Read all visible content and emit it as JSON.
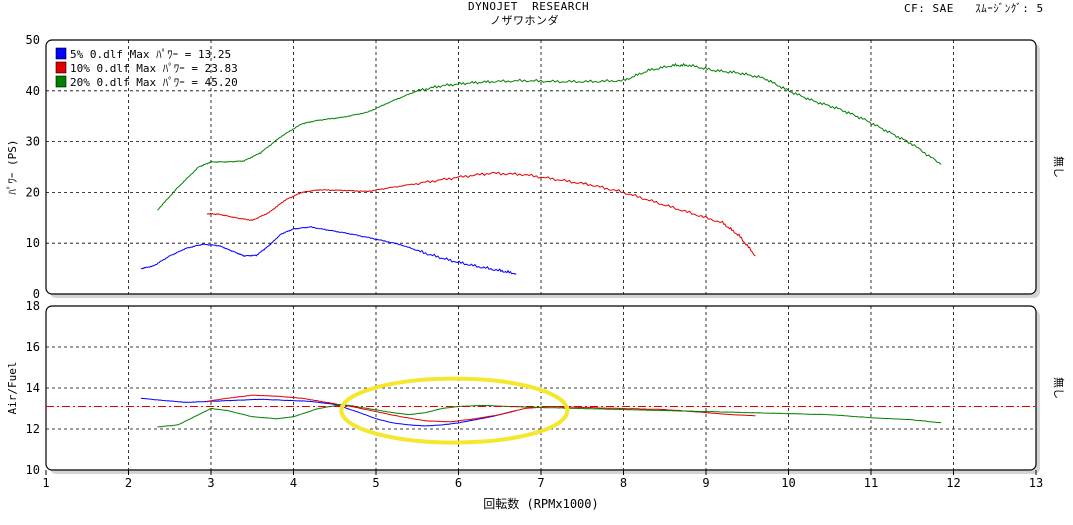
{
  "header": {
    "title": "DYNOJET  RESEARCH",
    "subtitle": "ノザワホンダ",
    "cf_label": "CF: SAE",
    "smoothing_label": "ｽﾑｰｼﾞﾝｸﾞ: 5"
  },
  "colors": {
    "blue": "#0000ff",
    "red": "#e00000",
    "green": "#008000",
    "reference_line": "#e00000",
    "highlight": "#f5e62e",
    "panel_shadow": "#d4d4d4"
  },
  "chart_data": [
    {
      "type": "line",
      "ylabel": "ﾊﾟﾜｰ (PS)",
      "right_label": "無し",
      "ylim": [
        0,
        50
      ],
      "xlim": [
        1,
        13
      ],
      "yticks": [
        0,
        10,
        20,
        30,
        40,
        50
      ],
      "grid": true,
      "legend_position": "top-left",
      "legend": [
        "5% 0.dlf Max ﾊﾟﾜｰ = 13.25",
        "10% 0.dlf Max ﾊﾟﾜｰ = 23.83",
        "20% 0.dlf Max ﾊﾟﾜｰ = 45.20"
      ],
      "series": [
        {
          "name": "5% 0.dlf",
          "color": "blue",
          "x": [
            2.15,
            2.3,
            2.5,
            2.7,
            2.9,
            3.1,
            3.25,
            3.4,
            3.55,
            3.7,
            3.85,
            4.0,
            4.2,
            4.45,
            4.7,
            5.0,
            5.3,
            5.6,
            5.9,
            6.2,
            6.5,
            6.7
          ],
          "y": [
            5.0,
            5.5,
            7.5,
            9.0,
            9.8,
            9.5,
            8.5,
            7.5,
            7.6,
            9.5,
            11.8,
            12.8,
            13.2,
            12.5,
            11.8,
            10.8,
            9.7,
            8.0,
            6.6,
            5.5,
            4.6,
            4.0
          ]
        },
        {
          "name": "10% 0.dlf",
          "color": "red",
          "x": [
            2.95,
            3.1,
            3.3,
            3.5,
            3.7,
            3.9,
            4.1,
            4.3,
            4.6,
            4.9,
            5.2,
            5.6,
            6.0,
            6.4,
            6.8,
            7.2,
            7.6,
            8.0,
            8.4,
            8.8,
            9.2,
            9.4,
            9.6
          ],
          "y": [
            15.8,
            15.7,
            15.0,
            14.5,
            16.0,
            18.5,
            20.0,
            20.5,
            20.4,
            20.2,
            21.0,
            22.0,
            23.0,
            23.8,
            23.5,
            22.5,
            21.5,
            20.0,
            18.0,
            16.0,
            14.0,
            11.5,
            7.5
          ]
        },
        {
          "name": "20% 0.dlf",
          "color": "green",
          "x": [
            2.35,
            2.6,
            2.85,
            3.0,
            3.2,
            3.4,
            3.6,
            3.85,
            4.1,
            4.3,
            4.6,
            4.9,
            5.2,
            5.5,
            5.8,
            6.1,
            6.4,
            6.8,
            7.2,
            7.6,
            8.0,
            8.3,
            8.6,
            8.8,
            9.1,
            9.4,
            9.7,
            10.0,
            10.3,
            10.6,
            10.9,
            11.2,
            11.5,
            11.85
          ],
          "y": [
            16.5,
            21.0,
            25.0,
            26.0,
            26.0,
            26.2,
            27.8,
            31.0,
            33.5,
            34.2,
            34.8,
            35.8,
            38.0,
            40.0,
            41.0,
            41.5,
            41.8,
            42.0,
            41.8,
            41.8,
            42.0,
            44.0,
            45.0,
            45.0,
            44.0,
            43.5,
            42.5,
            40.0,
            38.0,
            36.5,
            34.5,
            32.0,
            29.5,
            25.5
          ]
        }
      ]
    },
    {
      "type": "line",
      "ylabel": "Air/Fuel",
      "right_label": "無し",
      "xlabel": "回転数 (RPMx1000)",
      "ylim": [
        10,
        18
      ],
      "xlim": [
        1,
        13
      ],
      "yticks": [
        10,
        12,
        14,
        16,
        18
      ],
      "xticks": [
        1,
        2,
        3,
        4,
        5,
        6,
        7,
        8,
        9,
        10,
        11,
        12,
        13
      ],
      "grid": true,
      "reference_line": 13.1,
      "highlight_ellipse": {
        "center_x": 5.95,
        "center_y": 12.9,
        "radius_x": 1.37,
        "radius_y": 1.56
      },
      "series": [
        {
          "name": "5% 0.dlf",
          "color": "blue",
          "x": [
            2.15,
            2.4,
            2.7,
            3.0,
            3.3,
            3.6,
            3.9,
            4.2,
            4.5,
            4.8,
            5.0,
            5.2,
            5.4,
            5.6,
            5.8,
            6.0,
            6.2,
            6.4,
            6.6,
            6.7
          ],
          "y": [
            13.5,
            13.4,
            13.3,
            13.35,
            13.4,
            13.45,
            13.4,
            13.35,
            13.2,
            12.8,
            12.5,
            12.3,
            12.2,
            12.15,
            12.2,
            12.3,
            12.45,
            12.6,
            12.8,
            12.9
          ]
        },
        {
          "name": "10% 0.dlf",
          "color": "red",
          "x": [
            2.95,
            3.2,
            3.5,
            3.8,
            4.1,
            4.4,
            4.7,
            5.0,
            5.3,
            5.6,
            5.9,
            6.2,
            6.5,
            6.8,
            7.1,
            7.5,
            8.0,
            8.5,
            9.0,
            9.3,
            9.6
          ],
          "y": [
            13.35,
            13.5,
            13.65,
            13.6,
            13.5,
            13.3,
            13.1,
            12.85,
            12.6,
            12.4,
            12.35,
            12.5,
            12.7,
            13.0,
            13.1,
            13.05,
            13.0,
            12.95,
            12.8,
            12.7,
            12.65
          ]
        },
        {
          "name": "20% 0.dlf",
          "color": "green",
          "x": [
            2.35,
            2.6,
            2.8,
            3.0,
            3.2,
            3.5,
            3.8,
            4.0,
            4.3,
            4.6,
            4.9,
            5.2,
            5.4,
            5.6,
            5.8,
            6.0,
            6.3,
            6.6,
            7.0,
            7.5,
            8.0,
            8.5,
            9.0,
            9.5,
            10.0,
            10.5,
            11.0,
            11.5,
            11.85
          ],
          "y": [
            12.1,
            12.2,
            12.6,
            13.0,
            12.9,
            12.6,
            12.5,
            12.6,
            13.0,
            13.2,
            13.0,
            12.8,
            12.7,
            12.8,
            13.0,
            13.1,
            13.15,
            13.1,
            13.05,
            13.0,
            12.95,
            12.9,
            12.85,
            12.8,
            12.75,
            12.7,
            12.55,
            12.45,
            12.3
          ]
        }
      ]
    }
  ]
}
